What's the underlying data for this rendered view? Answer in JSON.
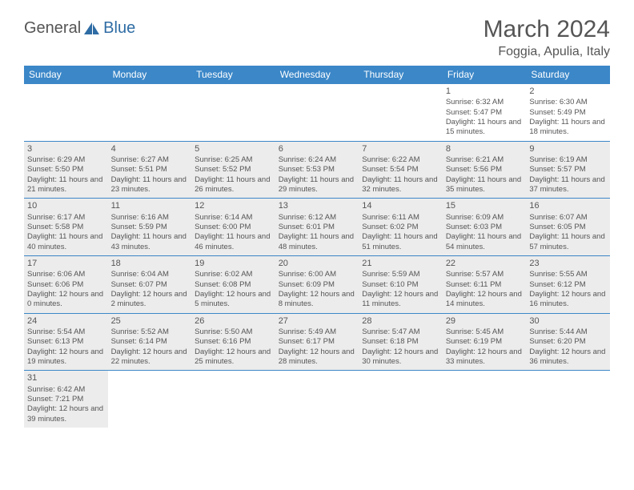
{
  "brand": {
    "text1": "General",
    "text2": "Blue"
  },
  "title": "March 2024",
  "location": "Foggia, Apulia, Italy",
  "colors": {
    "header_bg": "#3b87c8",
    "header_text": "#ffffff",
    "border": "#3b87c8",
    "shaded": "#ececec",
    "text": "#555555",
    "brand_blue": "#2e6ca4"
  },
  "weekdays": [
    "Sunday",
    "Monday",
    "Tuesday",
    "Wednesday",
    "Thursday",
    "Friday",
    "Saturday"
  ],
  "cells": [
    [
      {
        "day": "",
        "sunrise": "",
        "sunset": "",
        "daylight": "",
        "shaded": false
      },
      {
        "day": "",
        "sunrise": "",
        "sunset": "",
        "daylight": "",
        "shaded": false
      },
      {
        "day": "",
        "sunrise": "",
        "sunset": "",
        "daylight": "",
        "shaded": false
      },
      {
        "day": "",
        "sunrise": "",
        "sunset": "",
        "daylight": "",
        "shaded": false
      },
      {
        "day": "",
        "sunrise": "",
        "sunset": "",
        "daylight": "",
        "shaded": false
      },
      {
        "day": "1",
        "sunrise": "Sunrise: 6:32 AM",
        "sunset": "Sunset: 5:47 PM",
        "daylight": "Daylight: 11 hours and 15 minutes.",
        "shaded": false
      },
      {
        "day": "2",
        "sunrise": "Sunrise: 6:30 AM",
        "sunset": "Sunset: 5:49 PM",
        "daylight": "Daylight: 11 hours and 18 minutes.",
        "shaded": false
      }
    ],
    [
      {
        "day": "3",
        "sunrise": "Sunrise: 6:29 AM",
        "sunset": "Sunset: 5:50 PM",
        "daylight": "Daylight: 11 hours and 21 minutes.",
        "shaded": true
      },
      {
        "day": "4",
        "sunrise": "Sunrise: 6:27 AM",
        "sunset": "Sunset: 5:51 PM",
        "daylight": "Daylight: 11 hours and 23 minutes.",
        "shaded": true
      },
      {
        "day": "5",
        "sunrise": "Sunrise: 6:25 AM",
        "sunset": "Sunset: 5:52 PM",
        "daylight": "Daylight: 11 hours and 26 minutes.",
        "shaded": true
      },
      {
        "day": "6",
        "sunrise": "Sunrise: 6:24 AM",
        "sunset": "Sunset: 5:53 PM",
        "daylight": "Daylight: 11 hours and 29 minutes.",
        "shaded": true
      },
      {
        "day": "7",
        "sunrise": "Sunrise: 6:22 AM",
        "sunset": "Sunset: 5:54 PM",
        "daylight": "Daylight: 11 hours and 32 minutes.",
        "shaded": true
      },
      {
        "day": "8",
        "sunrise": "Sunrise: 6:21 AM",
        "sunset": "Sunset: 5:56 PM",
        "daylight": "Daylight: 11 hours and 35 minutes.",
        "shaded": true
      },
      {
        "day": "9",
        "sunrise": "Sunrise: 6:19 AM",
        "sunset": "Sunset: 5:57 PM",
        "daylight": "Daylight: 11 hours and 37 minutes.",
        "shaded": true
      }
    ],
    [
      {
        "day": "10",
        "sunrise": "Sunrise: 6:17 AM",
        "sunset": "Sunset: 5:58 PM",
        "daylight": "Daylight: 11 hours and 40 minutes.",
        "shaded": true
      },
      {
        "day": "11",
        "sunrise": "Sunrise: 6:16 AM",
        "sunset": "Sunset: 5:59 PM",
        "daylight": "Daylight: 11 hours and 43 minutes.",
        "shaded": true
      },
      {
        "day": "12",
        "sunrise": "Sunrise: 6:14 AM",
        "sunset": "Sunset: 6:00 PM",
        "daylight": "Daylight: 11 hours and 46 minutes.",
        "shaded": true
      },
      {
        "day": "13",
        "sunrise": "Sunrise: 6:12 AM",
        "sunset": "Sunset: 6:01 PM",
        "daylight": "Daylight: 11 hours and 48 minutes.",
        "shaded": true
      },
      {
        "day": "14",
        "sunrise": "Sunrise: 6:11 AM",
        "sunset": "Sunset: 6:02 PM",
        "daylight": "Daylight: 11 hours and 51 minutes.",
        "shaded": true
      },
      {
        "day": "15",
        "sunrise": "Sunrise: 6:09 AM",
        "sunset": "Sunset: 6:03 PM",
        "daylight": "Daylight: 11 hours and 54 minutes.",
        "shaded": true
      },
      {
        "day": "16",
        "sunrise": "Sunrise: 6:07 AM",
        "sunset": "Sunset: 6:05 PM",
        "daylight": "Daylight: 11 hours and 57 minutes.",
        "shaded": true
      }
    ],
    [
      {
        "day": "17",
        "sunrise": "Sunrise: 6:06 AM",
        "sunset": "Sunset: 6:06 PM",
        "daylight": "Daylight: 12 hours and 0 minutes.",
        "shaded": true
      },
      {
        "day": "18",
        "sunrise": "Sunrise: 6:04 AM",
        "sunset": "Sunset: 6:07 PM",
        "daylight": "Daylight: 12 hours and 2 minutes.",
        "shaded": true
      },
      {
        "day": "19",
        "sunrise": "Sunrise: 6:02 AM",
        "sunset": "Sunset: 6:08 PM",
        "daylight": "Daylight: 12 hours and 5 minutes.",
        "shaded": true
      },
      {
        "day": "20",
        "sunrise": "Sunrise: 6:00 AM",
        "sunset": "Sunset: 6:09 PM",
        "daylight": "Daylight: 12 hours and 8 minutes.",
        "shaded": true
      },
      {
        "day": "21",
        "sunrise": "Sunrise: 5:59 AM",
        "sunset": "Sunset: 6:10 PM",
        "daylight": "Daylight: 12 hours and 11 minutes.",
        "shaded": true
      },
      {
        "day": "22",
        "sunrise": "Sunrise: 5:57 AM",
        "sunset": "Sunset: 6:11 PM",
        "daylight": "Daylight: 12 hours and 14 minutes.",
        "shaded": true
      },
      {
        "day": "23",
        "sunrise": "Sunrise: 5:55 AM",
        "sunset": "Sunset: 6:12 PM",
        "daylight": "Daylight: 12 hours and 16 minutes.",
        "shaded": true
      }
    ],
    [
      {
        "day": "24",
        "sunrise": "Sunrise: 5:54 AM",
        "sunset": "Sunset: 6:13 PM",
        "daylight": "Daylight: 12 hours and 19 minutes.",
        "shaded": true
      },
      {
        "day": "25",
        "sunrise": "Sunrise: 5:52 AM",
        "sunset": "Sunset: 6:14 PM",
        "daylight": "Daylight: 12 hours and 22 minutes.",
        "shaded": true
      },
      {
        "day": "26",
        "sunrise": "Sunrise: 5:50 AM",
        "sunset": "Sunset: 6:16 PM",
        "daylight": "Daylight: 12 hours and 25 minutes.",
        "shaded": true
      },
      {
        "day": "27",
        "sunrise": "Sunrise: 5:49 AM",
        "sunset": "Sunset: 6:17 PM",
        "daylight": "Daylight: 12 hours and 28 minutes.",
        "shaded": true
      },
      {
        "day": "28",
        "sunrise": "Sunrise: 5:47 AM",
        "sunset": "Sunset: 6:18 PM",
        "daylight": "Daylight: 12 hours and 30 minutes.",
        "shaded": true
      },
      {
        "day": "29",
        "sunrise": "Sunrise: 5:45 AM",
        "sunset": "Sunset: 6:19 PM",
        "daylight": "Daylight: 12 hours and 33 minutes.",
        "shaded": true
      },
      {
        "day": "30",
        "sunrise": "Sunrise: 5:44 AM",
        "sunset": "Sunset: 6:20 PM",
        "daylight": "Daylight: 12 hours and 36 minutes.",
        "shaded": true
      }
    ],
    [
      {
        "day": "31",
        "sunrise": "Sunrise: 6:42 AM",
        "sunset": "Sunset: 7:21 PM",
        "daylight": "Daylight: 12 hours and 39 minutes.",
        "shaded": true
      },
      {
        "day": "",
        "sunrise": "",
        "sunset": "",
        "daylight": "",
        "shaded": false
      },
      {
        "day": "",
        "sunrise": "",
        "sunset": "",
        "daylight": "",
        "shaded": false
      },
      {
        "day": "",
        "sunrise": "",
        "sunset": "",
        "daylight": "",
        "shaded": false
      },
      {
        "day": "",
        "sunrise": "",
        "sunset": "",
        "daylight": "",
        "shaded": false
      },
      {
        "day": "",
        "sunrise": "",
        "sunset": "",
        "daylight": "",
        "shaded": false
      },
      {
        "day": "",
        "sunrise": "",
        "sunset": "",
        "daylight": "",
        "shaded": false
      }
    ]
  ]
}
